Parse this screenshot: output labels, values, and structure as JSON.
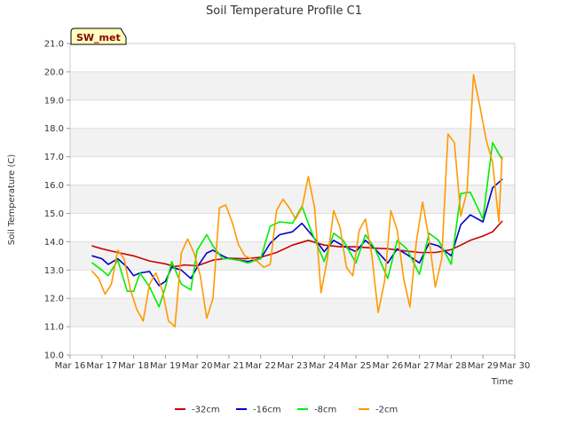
{
  "chart_data": {
    "type": "line",
    "title": "Soil Temperature Profile C1",
    "xlabel": "Time",
    "ylabel": "Soil Temperature (C)",
    "station_label": "SW_met",
    "xlim": [
      16,
      30
    ],
    "ylim": [
      10.0,
      21.0
    ],
    "x_ticks": [
      16,
      17,
      18,
      19,
      20,
      21,
      22,
      23,
      24,
      25,
      26,
      27,
      28,
      29,
      30
    ],
    "x_tick_labels": [
      "Mar 16",
      "Mar 17",
      "Mar 18",
      "Mar 19",
      "Mar 20",
      "Mar 21",
      "Mar 22",
      "Mar 23",
      "Mar 24",
      "Mar 25",
      "Mar 26",
      "Mar 27",
      "Mar 28",
      "Mar 29",
      "Mar 30"
    ],
    "y_ticks": [
      10,
      11,
      12,
      13,
      14,
      15,
      16,
      17,
      18,
      19,
      20,
      21
    ],
    "y_tick_labels": [
      "10.0",
      "11.0",
      "12.0",
      "13.0",
      "14.0",
      "15.0",
      "16.0",
      "17.0",
      "18.0",
      "19.0",
      "20.0",
      "21.0"
    ],
    "grid": true,
    "legend_position": "bottom",
    "series": [
      {
        "name": "-32cm",
        "color": "#cc0000",
        "x": [
          16.7,
          17.0,
          17.5,
          18.0,
          18.5,
          19.0,
          19.3,
          19.6,
          20.0,
          20.5,
          21.0,
          21.5,
          22.0,
          22.5,
          23.0,
          23.5,
          24.0,
          24.5,
          25.0,
          25.5,
          26.0,
          26.5,
          27.0,
          27.5,
          28.0,
          28.3,
          28.6,
          29.0,
          29.3,
          29.6
        ],
        "y": [
          13.85,
          13.75,
          13.62,
          13.5,
          13.32,
          13.22,
          13.12,
          13.18,
          13.15,
          13.35,
          13.42,
          13.4,
          13.45,
          13.62,
          13.88,
          14.05,
          13.88,
          13.82,
          13.82,
          13.78,
          13.75,
          13.68,
          13.62,
          13.62,
          13.72,
          13.88,
          14.05,
          14.2,
          14.35,
          14.72
        ]
      },
      {
        "name": "-16cm",
        "color": "#0000cc",
        "x": [
          16.7,
          17.0,
          17.2,
          17.5,
          17.8,
          18.0,
          18.2,
          18.5,
          18.8,
          19.0,
          19.2,
          19.5,
          19.8,
          20.0,
          20.3,
          20.5,
          20.8,
          21.0,
          21.3,
          21.6,
          22.0,
          22.3,
          22.6,
          23.0,
          23.3,
          23.6,
          24.0,
          24.3,
          24.6,
          25.0,
          25.3,
          25.6,
          26.0,
          26.3,
          26.6,
          27.0,
          27.3,
          27.6,
          28.0,
          28.3,
          28.6,
          29.0,
          29.3,
          29.6
        ],
        "y": [
          13.5,
          13.4,
          13.2,
          13.4,
          13.1,
          12.8,
          12.9,
          12.95,
          12.45,
          12.6,
          13.1,
          13.0,
          12.7,
          13.1,
          13.6,
          13.7,
          13.5,
          13.4,
          13.35,
          13.3,
          13.4,
          13.95,
          14.25,
          14.35,
          14.65,
          14.25,
          13.65,
          14.05,
          13.85,
          13.65,
          14.05,
          13.75,
          13.25,
          13.75,
          13.55,
          13.25,
          13.95,
          13.85,
          13.5,
          14.6,
          14.95,
          14.7,
          15.9,
          16.2
        ]
      },
      {
        "name": "-8cm",
        "color": "#00ee00",
        "x": [
          16.7,
          17.0,
          17.2,
          17.5,
          17.8,
          18.0,
          18.2,
          18.5,
          18.8,
          19.0,
          19.2,
          19.5,
          19.8,
          20.0,
          20.3,
          20.5,
          20.8,
          21.0,
          21.3,
          21.6,
          22.0,
          22.3,
          22.6,
          23.0,
          23.3,
          23.6,
          24.0,
          24.3,
          24.6,
          25.0,
          25.3,
          25.6,
          26.0,
          26.3,
          26.6,
          27.0,
          27.3,
          27.6,
          28.0,
          28.3,
          28.6,
          29.0,
          29.3,
          29.6
        ],
        "y": [
          13.25,
          13.0,
          12.8,
          13.35,
          12.25,
          12.25,
          12.9,
          12.4,
          11.7,
          12.4,
          13.3,
          12.5,
          12.3,
          13.7,
          14.25,
          13.85,
          13.4,
          13.4,
          13.35,
          13.25,
          13.4,
          14.55,
          14.7,
          14.65,
          15.25,
          14.35,
          13.3,
          14.3,
          14.05,
          13.25,
          14.25,
          13.75,
          12.7,
          14.05,
          13.75,
          12.85,
          14.3,
          14.05,
          13.2,
          15.7,
          15.75,
          14.8,
          17.5,
          16.9
        ]
      },
      {
        "name": "-2cm",
        "color": "#ff9900",
        "x": [
          16.7,
          16.9,
          17.1,
          17.3,
          17.5,
          17.7,
          17.9,
          18.1,
          18.3,
          18.5,
          18.7,
          18.9,
          19.1,
          19.3,
          19.5,
          19.7,
          19.9,
          20.1,
          20.3,
          20.5,
          20.7,
          20.9,
          21.1,
          21.3,
          21.5,
          21.7,
          21.9,
          22.1,
          22.3,
          22.5,
          22.7,
          22.9,
          23.1,
          23.3,
          23.5,
          23.7,
          23.9,
          24.1,
          24.3,
          24.5,
          24.7,
          24.9,
          25.1,
          25.3,
          25.5,
          25.7,
          25.9,
          26.1,
          26.3,
          26.5,
          26.7,
          26.9,
          27.1,
          27.3,
          27.5,
          27.7,
          27.9,
          28.1,
          28.3,
          28.5,
          28.7,
          28.9,
          29.1,
          29.3,
          29.5,
          29.6
        ],
        "y": [
          12.95,
          12.7,
          12.15,
          12.5,
          13.7,
          13.4,
          12.3,
          11.6,
          11.2,
          12.5,
          12.9,
          12.3,
          11.2,
          11.0,
          13.6,
          14.1,
          13.6,
          12.8,
          11.3,
          12.0,
          15.2,
          15.3,
          14.7,
          13.9,
          13.5,
          13.4,
          13.3,
          13.1,
          13.2,
          15.1,
          15.5,
          15.2,
          14.8,
          15.2,
          16.3,
          15.2,
          12.2,
          13.4,
          15.1,
          14.5,
          13.1,
          12.8,
          14.4,
          14.8,
          13.5,
          11.5,
          12.6,
          15.1,
          14.4,
          12.7,
          11.7,
          14.0,
          15.4,
          14.1,
          12.4,
          13.4,
          17.8,
          17.5,
          14.9,
          15.8,
          19.9,
          18.8,
          17.6,
          16.8,
          14.7,
          17.0
        ]
      }
    ]
  }
}
